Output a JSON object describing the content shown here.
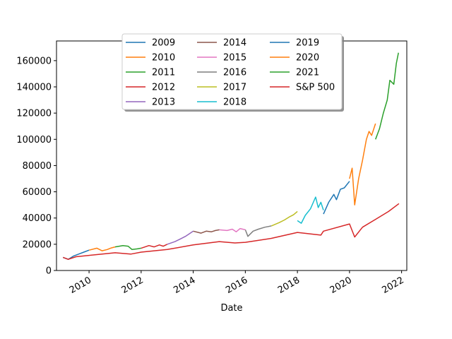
{
  "chart_data": {
    "type": "line",
    "title": "",
    "xlabel": "Date",
    "ylabel": "",
    "xlim": [
      2008.75,
      2022.2
    ],
    "ylim": [
      0,
      175000
    ],
    "x_ticks": [
      2010,
      2012,
      2014,
      2016,
      2018,
      2020,
      2022
    ],
    "y_ticks": [
      0,
      20000,
      40000,
      60000,
      80000,
      100000,
      120000,
      140000,
      160000
    ],
    "grid": false,
    "legend": {
      "placement": "upper center",
      "columns": 3
    },
    "series": [
      {
        "name": "2009",
        "color": "#1f77b4",
        "points": [
          [
            2009.0,
            10000
          ],
          [
            2009.2,
            8500
          ],
          [
            2009.4,
            11000
          ],
          [
            2009.6,
            12500
          ],
          [
            2009.8,
            14000
          ],
          [
            2010.0,
            15500
          ]
        ]
      },
      {
        "name": "2010",
        "color": "#ff7f0e",
        "points": [
          [
            2010.0,
            15500
          ],
          [
            2010.3,
            17000
          ],
          [
            2010.5,
            15000
          ],
          [
            2010.7,
            16000
          ],
          [
            2010.85,
            17200
          ],
          [
            2011.0,
            18000
          ]
        ]
      },
      {
        "name": "2011",
        "color": "#2ca02c",
        "points": [
          [
            2011.0,
            18000
          ],
          [
            2011.3,
            19000
          ],
          [
            2011.5,
            18500
          ],
          [
            2011.65,
            16000
          ],
          [
            2011.85,
            16500
          ],
          [
            2012.0,
            17000
          ]
        ]
      },
      {
        "name": "2012",
        "color": "#d62728",
        "points": [
          [
            2012.0,
            17000
          ],
          [
            2012.3,
            19000
          ],
          [
            2012.5,
            18000
          ],
          [
            2012.7,
            19500
          ],
          [
            2012.85,
            18500
          ],
          [
            2013.0,
            20000
          ]
        ]
      },
      {
        "name": "2013",
        "color": "#9467bd",
        "points": [
          [
            2013.0,
            20000
          ],
          [
            2013.3,
            22000
          ],
          [
            2013.5,
            24000
          ],
          [
            2013.7,
            26000
          ],
          [
            2013.85,
            28000
          ],
          [
            2014.0,
            30000
          ]
        ]
      },
      {
        "name": "2014",
        "color": "#8c564b",
        "points": [
          [
            2014.0,
            30000
          ],
          [
            2014.3,
            28500
          ],
          [
            2014.5,
            30000
          ],
          [
            2014.7,
            29500
          ],
          [
            2014.85,
            30500
          ],
          [
            2015.0,
            31000
          ]
        ]
      },
      {
        "name": "2015",
        "color": "#e377c2",
        "points": [
          [
            2015.0,
            31000
          ],
          [
            2015.3,
            30500
          ],
          [
            2015.5,
            31500
          ],
          [
            2015.65,
            29500
          ],
          [
            2015.8,
            32000
          ],
          [
            2016.0,
            31000
          ]
        ]
      },
      {
        "name": "2016",
        "color": "#7f7f7f",
        "points": [
          [
            2016.0,
            31000
          ],
          [
            2016.1,
            26000
          ],
          [
            2016.3,
            30000
          ],
          [
            2016.5,
            31500
          ],
          [
            2016.75,
            33000
          ],
          [
            2017.0,
            34000
          ]
        ]
      },
      {
        "name": "2017",
        "color": "#bcbd22",
        "points": [
          [
            2017.0,
            34000
          ],
          [
            2017.3,
            36500
          ],
          [
            2017.5,
            38500
          ],
          [
            2017.7,
            41000
          ],
          [
            2017.85,
            42500
          ],
          [
            2018.0,
            45000
          ]
        ]
      },
      {
        "name": "2018",
        "color": "#17becf",
        "points": [
          [
            2018.0,
            38000
          ],
          [
            2018.15,
            36000
          ],
          [
            2018.3,
            42000
          ],
          [
            2018.5,
            47000
          ],
          [
            2018.7,
            56000
          ],
          [
            2018.8,
            48000
          ],
          [
            2018.9,
            52000
          ],
          [
            2019.0,
            46000
          ]
        ]
      },
      {
        "name": "2019",
        "color": "#1f77b4",
        "points": [
          [
            2019.0,
            43000
          ],
          [
            2019.2,
            52000
          ],
          [
            2019.4,
            58000
          ],
          [
            2019.5,
            54000
          ],
          [
            2019.65,
            62000
          ],
          [
            2019.8,
            63000
          ],
          [
            2020.0,
            68000
          ]
        ]
      },
      {
        "name": "2020",
        "color": "#ff7f0e",
        "points": [
          [
            2020.0,
            70000
          ],
          [
            2020.1,
            78000
          ],
          [
            2020.2,
            50000
          ],
          [
            2020.35,
            70000
          ],
          [
            2020.5,
            84000
          ],
          [
            2020.65,
            100000
          ],
          [
            2020.75,
            106000
          ],
          [
            2020.85,
            103000
          ],
          [
            2021.0,
            112000
          ]
        ]
      },
      {
        "name": "2021",
        "color": "#2ca02c",
        "points": [
          [
            2021.0,
            100000
          ],
          [
            2021.15,
            108000
          ],
          [
            2021.3,
            120000
          ],
          [
            2021.45,
            130000
          ],
          [
            2021.55,
            145000
          ],
          [
            2021.7,
            142000
          ],
          [
            2021.8,
            158000
          ],
          [
            2021.88,
            166000
          ]
        ]
      },
      {
        "name": "S&P 500",
        "color": "#d62728",
        "points": [
          [
            2009.0,
            10000
          ],
          [
            2009.2,
            8500
          ],
          [
            2009.5,
            10500
          ],
          [
            2010.0,
            11500
          ],
          [
            2010.5,
            12500
          ],
          [
            2011.0,
            13500
          ],
          [
            2011.6,
            12500
          ],
          [
            2012.0,
            14000
          ],
          [
            2013.0,
            16000
          ],
          [
            2014.0,
            19500
          ],
          [
            2015.0,
            22000
          ],
          [
            2015.6,
            21000
          ],
          [
            2016.0,
            21500
          ],
          [
            2017.0,
            24500
          ],
          [
            2018.0,
            29000
          ],
          [
            2018.9,
            27000
          ],
          [
            2019.0,
            30000
          ],
          [
            2020.0,
            35500
          ],
          [
            2020.2,
            25500
          ],
          [
            2020.5,
            33000
          ],
          [
            2021.0,
            39000
          ],
          [
            2021.5,
            45000
          ],
          [
            2021.9,
            51000
          ]
        ]
      }
    ]
  }
}
